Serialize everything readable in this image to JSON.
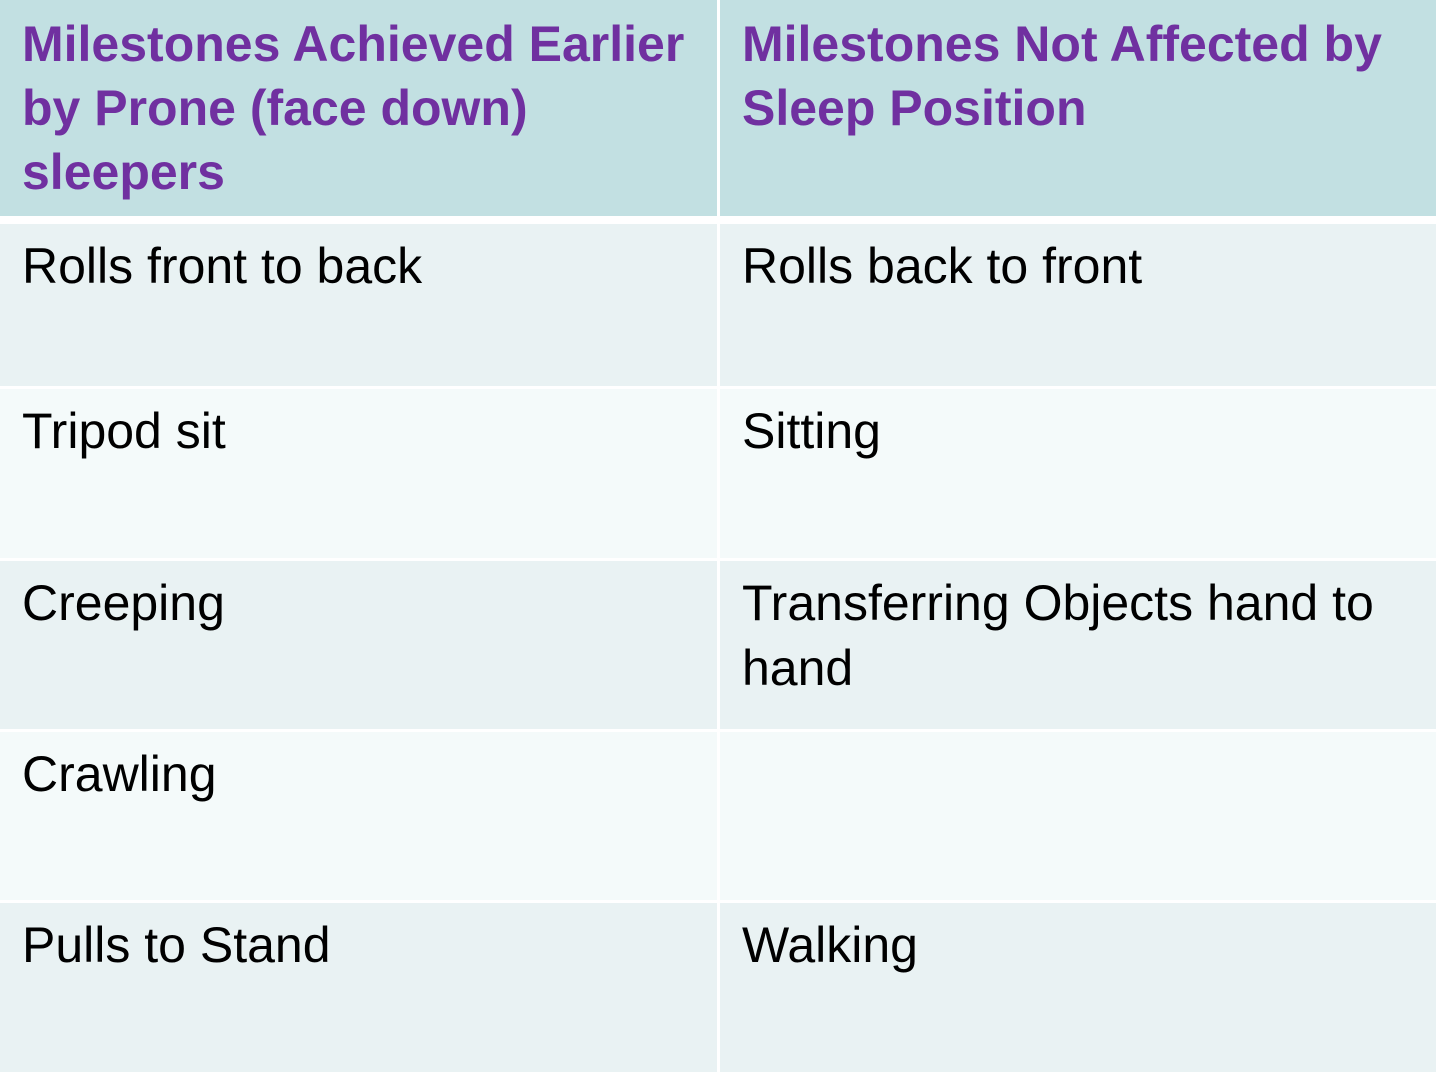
{
  "table": {
    "headers": [
      "Milestones Achieved Earlier by Prone (face down) sleepers",
      "Milestones Not Affected by Sleep Position"
    ],
    "rows": [
      [
        "Rolls front to back",
        "Rolls back to front"
      ],
      [
        "Tripod sit",
        "Sitting"
      ],
      [
        "Creeping",
        "Transferring Objects hand to hand"
      ],
      [
        "Crawling",
        ""
      ],
      [
        "Pulls to Stand",
        "Walking"
      ]
    ],
    "colors": {
      "header_bg": "#c2e0e2",
      "header_text": "#7030a0",
      "row_odd": "#e9f2f3",
      "row_even": "#f4fafa"
    }
  }
}
